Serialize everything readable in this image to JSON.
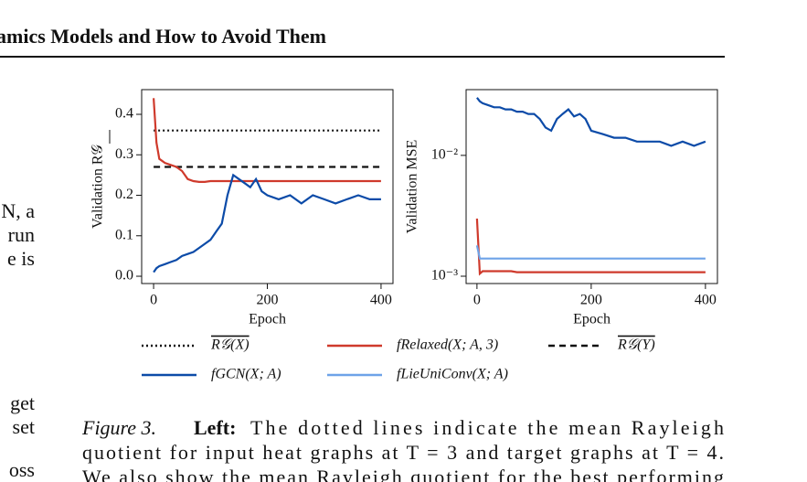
{
  "header": {
    "title": "amics Models and How to Avoid Them"
  },
  "side_text": [
    "N, a",
    "run",
    "e is",
    "get",
    "set",
    "oss"
  ],
  "chart_data": [
    {
      "type": "line",
      "ylabel": "Validation R𝒢",
      "xlabel": "Epoch",
      "x": [
        0,
        5,
        10,
        20,
        30,
        40,
        50,
        60,
        70,
        80,
        90,
        100,
        110,
        120,
        130,
        140,
        150,
        160,
        170,
        180,
        190,
        200,
        220,
        240,
        260,
        280,
        300,
        320,
        340,
        360,
        380,
        400
      ],
      "xlim": [
        -21,
        421
      ],
      "xticks": [
        0,
        200,
        400
      ],
      "ylim": [
        -0.018,
        0.461
      ],
      "yticks": [
        {
          "value": 0,
          "label": "0.0"
        },
        0.1,
        0.2,
        0.3,
        0.4
      ],
      "series": [
        {
          "name": "R𝒢(X)",
          "color": "#111111",
          "dash": "dotted",
          "values": [
            0.36,
            0.36,
            0.36,
            0.36,
            0.36,
            0.36,
            0.36,
            0.36,
            0.36,
            0.36,
            0.36,
            0.36,
            0.36,
            0.36,
            0.36,
            0.36,
            0.36,
            0.36,
            0.36,
            0.36,
            0.36,
            0.36,
            0.36,
            0.36,
            0.36,
            0.36,
            0.36,
            0.36,
            0.36,
            0.36,
            0.36,
            0.36
          ]
        },
        {
          "name": "R𝒢(Y)",
          "color": "#111111",
          "dash": "dashed",
          "values": [
            0.27,
            0.27,
            0.27,
            0.27,
            0.27,
            0.27,
            0.27,
            0.27,
            0.27,
            0.27,
            0.27,
            0.27,
            0.27,
            0.27,
            0.27,
            0.27,
            0.27,
            0.27,
            0.27,
            0.27,
            0.27,
            0.27,
            0.27,
            0.27,
            0.27,
            0.27,
            0.27,
            0.27,
            0.27,
            0.27,
            0.27,
            0.27
          ]
        },
        {
          "name": "fRelaxed(X; A, 3)",
          "color": "#cf3a2c",
          "dash": "solid",
          "values": [
            0.44,
            0.33,
            0.29,
            0.28,
            0.275,
            0.27,
            0.26,
            0.24,
            0.235,
            0.233,
            0.233,
            0.235,
            0.235,
            0.235,
            0.235,
            0.235,
            0.235,
            0.235,
            0.235,
            0.235,
            0.235,
            0.235,
            0.235,
            0.235,
            0.235,
            0.235,
            0.235,
            0.235,
            0.235,
            0.235,
            0.235,
            0.235
          ]
        },
        {
          "name": "fGCN(X; A)",
          "color": "#0c4ba8",
          "dash": "solid",
          "values": [
            0.01,
            0.02,
            0.025,
            0.03,
            0.035,
            0.04,
            0.05,
            0.055,
            0.06,
            0.07,
            0.08,
            0.09,
            0.11,
            0.13,
            0.2,
            0.25,
            0.24,
            0.23,
            0.22,
            0.24,
            0.21,
            0.2,
            0.19,
            0.2,
            0.18,
            0.2,
            0.19,
            0.18,
            0.19,
            0.2,
            0.19,
            0.19
          ]
        }
      ]
    },
    {
      "type": "line",
      "ylabel": "Validation MSE",
      "xlabel": "Epoch",
      "log_y": true,
      "x": [
        0,
        5,
        10,
        20,
        30,
        40,
        50,
        60,
        70,
        80,
        90,
        100,
        110,
        120,
        130,
        140,
        150,
        160,
        170,
        180,
        190,
        200,
        220,
        240,
        260,
        280,
        300,
        320,
        340,
        360,
        380,
        400
      ],
      "xlim": [
        -19,
        421
      ],
      "xticks": [
        0,
        200,
        400
      ],
      "ylim": [
        0.00087,
        0.035
      ],
      "yticks": [
        {
          "value": 0.001,
          "label": "10⁻³"
        },
        {
          "value": 0.01,
          "label": "10⁻²"
        }
      ],
      "series": [
        {
          "color": "#0c4ba8",
          "dash": "solid",
          "values": [
            0.03,
            0.028,
            0.027,
            0.026,
            0.025,
            0.025,
            0.024,
            0.024,
            0.023,
            0.023,
            0.022,
            0.022,
            0.02,
            0.017,
            0.016,
            0.02,
            0.022,
            0.024,
            0.021,
            0.022,
            0.02,
            0.016,
            0.015,
            0.014,
            0.014,
            0.013,
            0.013,
            0.013,
            0.012,
            0.013,
            0.012,
            0.013
          ]
        },
        {
          "color": "#cf3a2c",
          "dash": "solid",
          "values": [
            0.003,
            0.00105,
            0.0011,
            0.0011,
            0.0011,
            0.0011,
            0.0011,
            0.0011,
            0.00108,
            0.00108,
            0.00108,
            0.00108,
            0.00108,
            0.00108,
            0.00108,
            0.00108,
            0.00108,
            0.00108,
            0.00108,
            0.00108,
            0.00108,
            0.00108,
            0.00108,
            0.00108,
            0.00108,
            0.00108,
            0.00108,
            0.00108,
            0.00108,
            0.00108,
            0.00108,
            0.00108
          ]
        },
        {
          "name": "fLieUniConv(X; A)",
          "color": "#6ea3e8",
          "dash": "solid",
          "values": [
            0.0018,
            0.0014,
            0.0014,
            0.0014,
            0.0014,
            0.0014,
            0.0014,
            0.0014,
            0.0014,
            0.0014,
            0.0014,
            0.0014,
            0.0014,
            0.0014,
            0.0014,
            0.0014,
            0.0014,
            0.0014,
            0.0014,
            0.0014,
            0.0014,
            0.0014,
            0.0014,
            0.0014,
            0.0014,
            0.0014,
            0.0014,
            0.0014,
            0.0014,
            0.0014,
            0.0014,
            0.0014
          ]
        }
      ]
    }
  ],
  "caption": {
    "label": "Figure 3.",
    "bold": "Left:",
    "lines": [
      "The dotted lines indicate the mean Rayleigh",
      "quotient for input heat graphs at T = 3 and target graphs at T = 4.",
      "We also show the mean Rayleigh quotient for the best performing"
    ]
  }
}
